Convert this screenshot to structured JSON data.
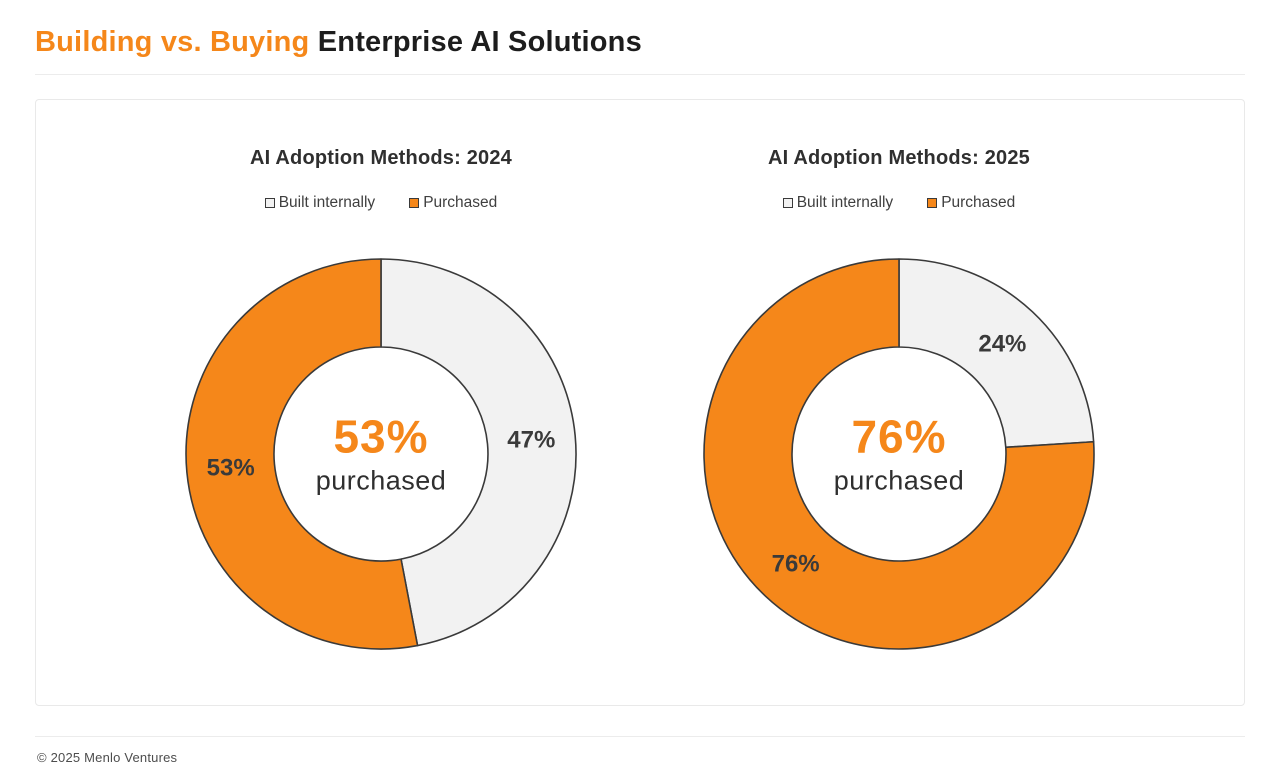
{
  "page": {
    "title_accent": "Building vs. Buying",
    "title_rest": " Enterprise AI Solutions",
    "footer": "© 2025 Menlo Ventures"
  },
  "colors": {
    "accent": "#F5871A",
    "outline": "#3A3A3A",
    "slice_label": "#3A3A3A"
  },
  "chart_data": [
    {
      "type": "pie",
      "donut": true,
      "title": "AI Adoption Methods: 2024",
      "start_angle_deg": 0,
      "direction": "clockwise",
      "legend_position": "top",
      "slices": [
        {
          "label": "Built internally",
          "value": 47,
          "data_label": "47%",
          "color": "#F2F2F2"
        },
        {
          "label": "Purchased",
          "value": 53,
          "data_label": "53%",
          "color": "#F5871A"
        }
      ],
      "center": {
        "value": "53%",
        "caption": "purchased"
      }
    },
    {
      "type": "pie",
      "donut": true,
      "title": "AI Adoption Methods: 2025",
      "start_angle_deg": 0,
      "direction": "clockwise",
      "legend_position": "top",
      "slices": [
        {
          "label": "Built internally",
          "value": 24,
          "data_label": "24%",
          "color": "#F2F2F2"
        },
        {
          "label": "Purchased",
          "value": 76,
          "data_label": "76%",
          "color": "#F5871A"
        }
      ],
      "center": {
        "value": "76%",
        "caption": "purchased"
      }
    }
  ]
}
